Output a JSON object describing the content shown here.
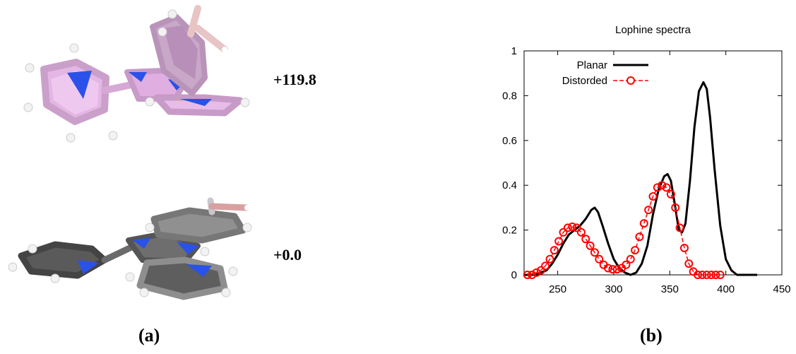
{
  "panel_a": {
    "energy_top": "+119.8",
    "energy_bottom": "+0.0",
    "caption": "(a)"
  },
  "panel_b": {
    "caption": "(b)"
  },
  "colors": {
    "planar": "#000000",
    "distorded": "#ff0000",
    "pink_molecule": "#e0aee0",
    "gray_molecule": "#6e6e6e",
    "nitrogen": "#2a52e8"
  },
  "chart_data": {
    "type": "line",
    "title": "Lophine spectra",
    "xlabel": "",
    "ylabel": "",
    "xlim": [
      220,
      450
    ],
    "ylim": [
      0,
      1
    ],
    "xticks": [
      250,
      300,
      350,
      400,
      450
    ],
    "yticks": [
      0,
      0.2,
      0.4,
      0.6,
      0.8,
      1
    ],
    "ytick_labels": [
      "0",
      "0.2",
      "0.4",
      "0.6",
      "0.8",
      "1"
    ],
    "grid": false,
    "legend": "top-left",
    "series": [
      {
        "name": "Planar",
        "style": "line",
        "x": [
          220,
          225,
          230,
          235,
          240,
          245,
          250,
          255,
          260,
          265,
          270,
          275,
          280,
          283,
          286,
          290,
          295,
          300,
          305,
          310,
          315,
          320,
          325,
          330,
          335,
          340,
          345,
          348,
          351,
          355,
          358,
          361,
          364,
          368,
          372,
          376,
          380,
          383,
          386,
          390,
          395,
          400,
          405,
          410,
          415,
          420,
          428
        ],
        "y": [
          0.0,
          0.0,
          0.0,
          0.01,
          0.02,
          0.05,
          0.09,
          0.14,
          0.18,
          0.2,
          0.22,
          0.25,
          0.29,
          0.3,
          0.28,
          0.22,
          0.14,
          0.07,
          0.03,
          0.01,
          0.0,
          0.01,
          0.05,
          0.13,
          0.27,
          0.38,
          0.44,
          0.45,
          0.42,
          0.3,
          0.2,
          0.19,
          0.23,
          0.42,
          0.66,
          0.82,
          0.86,
          0.83,
          0.7,
          0.47,
          0.22,
          0.07,
          0.02,
          0.0,
          0.0,
          0.0,
          0.0
        ]
      },
      {
        "name": "Distorded",
        "style": "circles-dashed",
        "x": [
          223,
          227,
          231,
          235,
          239,
          243,
          247,
          251,
          255,
          259,
          263,
          267,
          271,
          275,
          279,
          283,
          287,
          291,
          295,
          299,
          303,
          307,
          311,
          315,
          319,
          323,
          327,
          331,
          335,
          339,
          343,
          347,
          351,
          355,
          359,
          363,
          367,
          371,
          375,
          379,
          383,
          387,
          391,
          395
        ],
        "y": [
          0.0,
          0.0,
          0.01,
          0.02,
          0.04,
          0.07,
          0.11,
          0.15,
          0.19,
          0.21,
          0.215,
          0.21,
          0.19,
          0.16,
          0.13,
          0.1,
          0.07,
          0.045,
          0.03,
          0.025,
          0.025,
          0.03,
          0.045,
          0.07,
          0.11,
          0.17,
          0.23,
          0.29,
          0.35,
          0.39,
          0.4,
          0.39,
          0.36,
          0.3,
          0.21,
          0.12,
          0.05,
          0.015,
          0.0,
          0.0,
          0.0,
          0.0,
          0.0,
          0.0
        ]
      }
    ]
  }
}
